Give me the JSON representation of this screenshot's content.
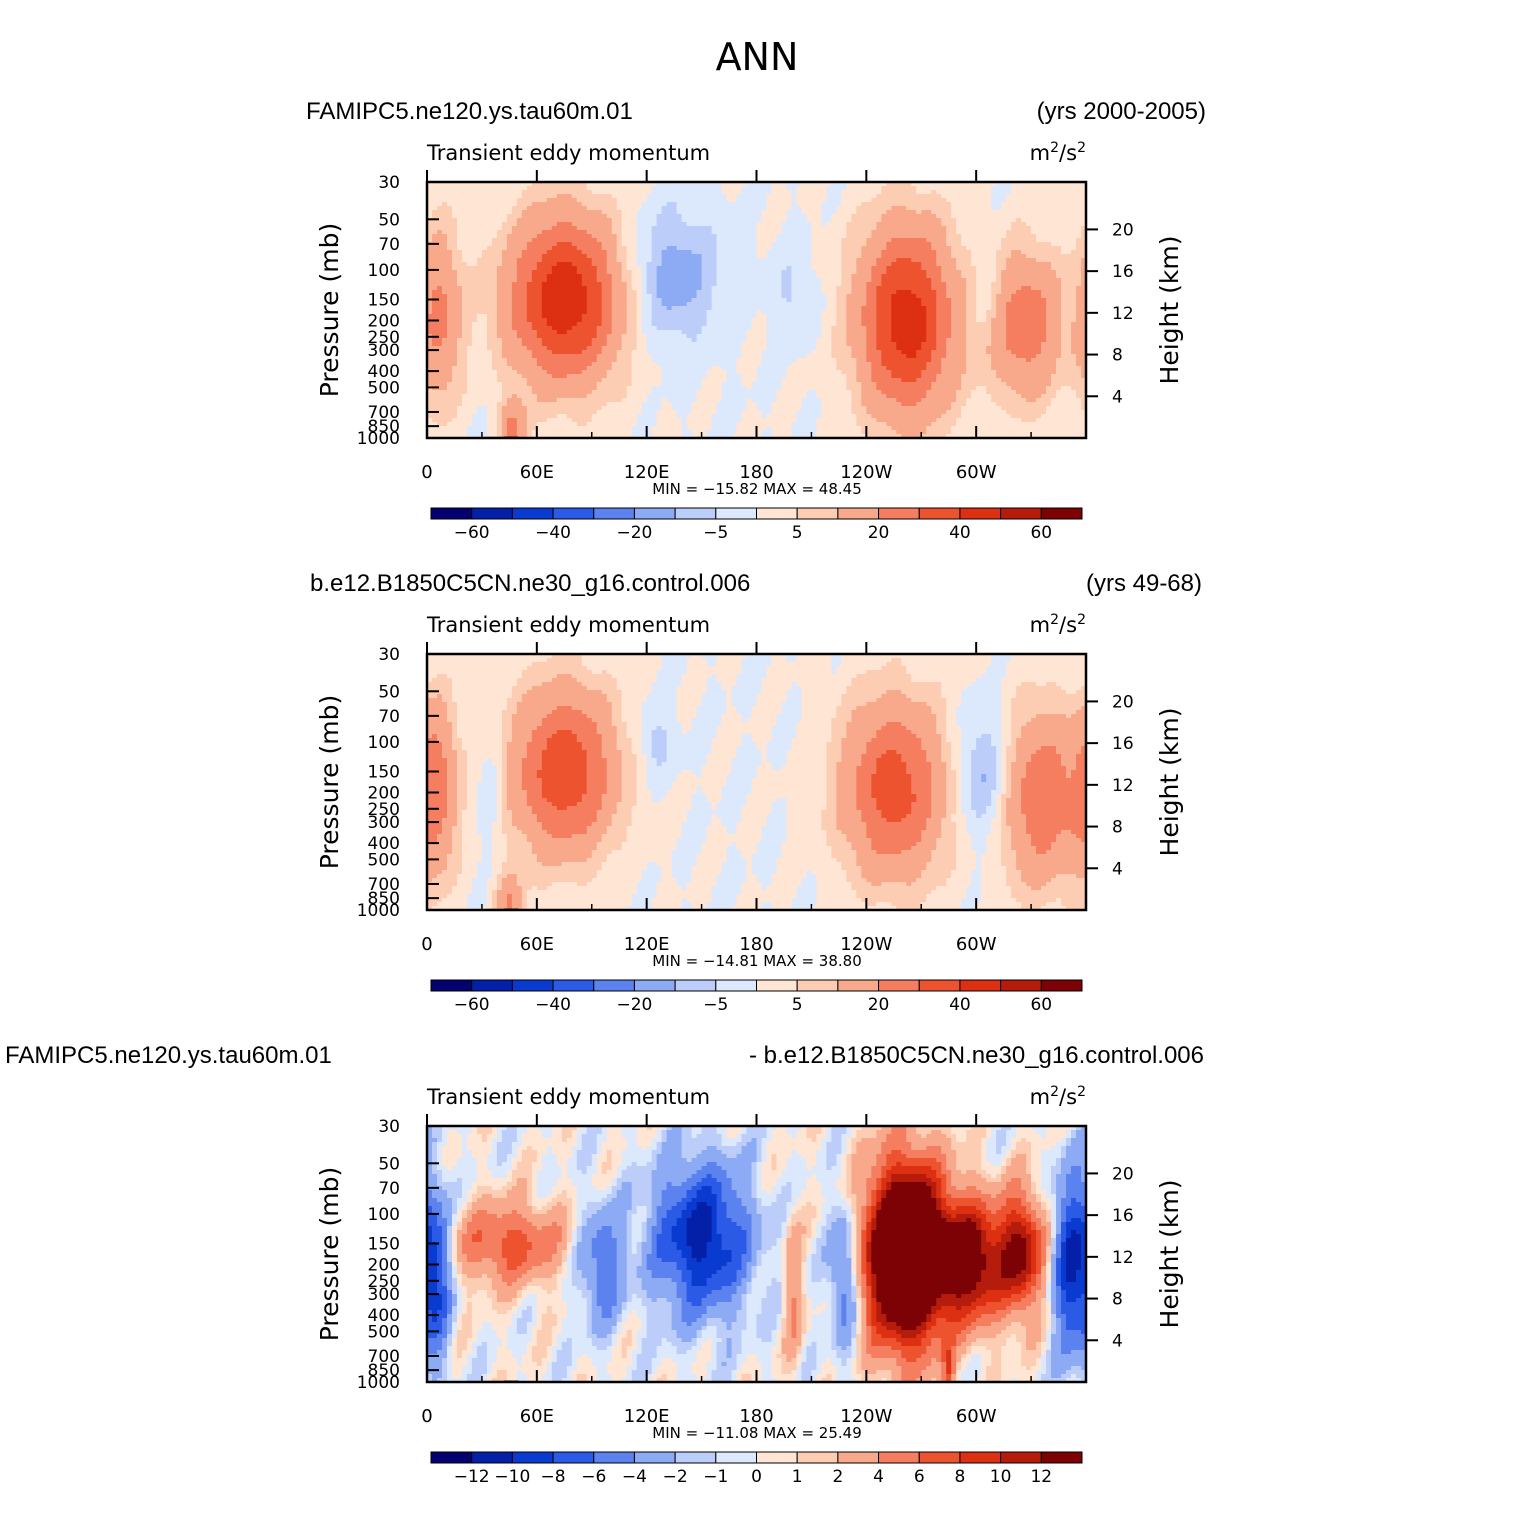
{
  "figure": {
    "title": "ANN"
  },
  "colors": {
    "neg": [
      "#03026e",
      "#0420a8",
      "#0a3bd0",
      "#2b5ae6",
      "#5c82ef",
      "#8daaf4",
      "#bbcdf8",
      "#dce8fb"
    ],
    "pos": [
      "#ffe6d4",
      "#fdcdb3",
      "#f9a98b",
      "#f47e5f",
      "#ee5330",
      "#dd2f12",
      "#b51c0c",
      "#7c0206"
    ],
    "land": "#000000"
  },
  "chart_data": [
    {
      "type": "heatmap",
      "left_title": "FAMIPC5.ne120.ys.tau60m.01",
      "right_title": "(yrs 2000-2005)",
      "subtitle": "Transient  eddy  momentum",
      "units": "m",
      "units_sup1": "2",
      "units_mid": "/s",
      "units_sup2": "2",
      "ylabel": "Pressure  (mb)",
      "ylabel_right": "Height  (km)",
      "x_ticks": [
        "0",
        "60E",
        "120E",
        "180",
        "120W",
        "60W"
      ],
      "y_ticks": [
        "30",
        "50",
        "70",
        "100",
        "150",
        "200",
        "250",
        "300",
        "400",
        "500",
        "700",
        "850",
        "1000"
      ],
      "y_ticks_right": [
        "20",
        "16",
        "12",
        "8",
        "4"
      ],
      "stats": "MIN  =  −15.82    MAX  =    48.45",
      "min": -15.82,
      "max": 48.45,
      "colorbar_labels": [
        "−60",
        "−40",
        "−20",
        "−5",
        "5",
        "20",
        "40",
        "60"
      ],
      "features": [
        {
          "lon": 75,
          "p": 150,
          "peak": 48,
          "wlon": 30,
          "wp": 0.28
        },
        {
          "lon": 262,
          "p": 200,
          "peak": 46,
          "wlon": 26,
          "wp": 0.32
        },
        {
          "lon": 327,
          "p": 210,
          "peak": 27,
          "wlon": 20,
          "wp": 0.25
        },
        {
          "lon": 7,
          "p": 190,
          "peak": 22,
          "wlon": 12,
          "wp": 0.3
        },
        {
          "lon": 47,
          "p": 900,
          "peak": 22,
          "wlon": 7,
          "wp": 0.1
        },
        {
          "lon": 135,
          "p": 110,
          "peak": -14,
          "wlon": 24,
          "wp": 0.22
        },
        {
          "lon": 200,
          "p": 140,
          "peak": -6,
          "wlon": 12,
          "wp": 0.15
        },
        {
          "lon": 305,
          "p": 140,
          "peak": -6,
          "wlon": 10,
          "wp": 0.15
        }
      ]
    },
    {
      "type": "heatmap",
      "left_title": "b.e12.B1850C5CN.ne30_g16.control.006",
      "right_title": "(yrs 49-68)",
      "subtitle": "Transient  eddy  momentum",
      "units": "m",
      "units_sup1": "2",
      "units_mid": "/s",
      "units_sup2": "2",
      "ylabel": "Pressure  (mb)",
      "ylabel_right": "Height  (km)",
      "x_ticks": [
        "0",
        "60E",
        "120E",
        "180",
        "120W",
        "60W"
      ],
      "y_ticks": [
        "30",
        "50",
        "70",
        "100",
        "150",
        "200",
        "250",
        "300",
        "400",
        "500",
        "700",
        "850",
        "1000"
      ],
      "y_ticks_right": [
        "20",
        "16",
        "12",
        "8",
        "4"
      ],
      "stats": "MIN  =  −14.81    MAX  =    38.80",
      "min": -14.81,
      "max": 38.8,
      "colorbar_labels": [
        "−60",
        "−40",
        "−20",
        "−5",
        "5",
        "20",
        "40",
        "60"
      ],
      "features": [
        {
          "lon": 75,
          "p": 150,
          "peak": 38,
          "wlon": 28,
          "wp": 0.28
        },
        {
          "lon": 255,
          "p": 190,
          "peak": 35,
          "wlon": 28,
          "wp": 0.3
        },
        {
          "lon": 335,
          "p": 215,
          "peak": 28,
          "wlon": 22,
          "wp": 0.3
        },
        {
          "lon": 5,
          "p": 190,
          "peak": 24,
          "wlon": 12,
          "wp": 0.3
        },
        {
          "lon": 45,
          "p": 900,
          "peak": 20,
          "wlon": 7,
          "wp": 0.1
        },
        {
          "lon": 125,
          "p": 100,
          "peak": -8,
          "wlon": 10,
          "wp": 0.12
        },
        {
          "lon": 305,
          "p": 160,
          "peak": -14,
          "wlon": 16,
          "wp": 0.22
        },
        {
          "lon": 35,
          "p": 200,
          "peak": -6,
          "wlon": 8,
          "wp": 0.2
        }
      ]
    },
    {
      "type": "heatmap",
      "left_title": "FAMIPC5.ne120.ys.tau60m.01",
      "right_title": "- b.e12.B1850C5CN.ne30_g16.control.006",
      "subtitle": "Transient  eddy  momentum",
      "units": "m",
      "units_sup1": "2",
      "units_mid": "/s",
      "units_sup2": "2",
      "ylabel": "Pressure  (mb)",
      "ylabel_right": "Height  (km)",
      "x_ticks": [
        "0",
        "60E",
        "120E",
        "180",
        "120W",
        "60W"
      ],
      "y_ticks": [
        "30",
        "50",
        "70",
        "100",
        "150",
        "200",
        "250",
        "300",
        "400",
        "500",
        "700",
        "850",
        "1000"
      ],
      "y_ticks_right": [
        "20",
        "16",
        "12",
        "8",
        "4"
      ],
      "stats": "MIN  =  −11.08    MAX  =    25.49",
      "min": -11.08,
      "max": 25.49,
      "colorbar_labels": [
        "−12",
        "−10",
        "−8",
        "−6",
        "−4",
        "−2",
        "−1",
        "0",
        "1",
        "2",
        "4",
        "6",
        "8",
        "10",
        "12"
      ],
      "features": [
        {
          "lon": 262,
          "p": 175,
          "peak": 25,
          "wlon": 22,
          "wp": 0.3
        },
        {
          "lon": 298,
          "p": 190,
          "peak": 14,
          "wlon": 18,
          "wp": 0.2
        },
        {
          "lon": 325,
          "p": 170,
          "peak": 12,
          "wlon": 12,
          "wp": 0.2
        },
        {
          "lon": 45,
          "p": 150,
          "peak": 7,
          "wlon": 30,
          "wp": 0.14
        },
        {
          "lon": 285,
          "p": 880,
          "peak": 6,
          "wlon": 3,
          "wp": 0.1
        },
        {
          "lon": 200,
          "p": 280,
          "peak": 4,
          "wlon": 5,
          "wp": 0.25
        },
        {
          "lon": 150,
          "p": 140,
          "peak": -11,
          "wlon": 26,
          "wp": 0.25
        },
        {
          "lon": 95,
          "p": 200,
          "peak": -6,
          "wlon": 12,
          "wp": 0.2
        },
        {
          "lon": 5,
          "p": 210,
          "peak": -8,
          "wlon": 8,
          "wp": 0.3
        },
        {
          "lon": 352,
          "p": 200,
          "peak": -10,
          "wlon": 10,
          "wp": 0.3
        },
        {
          "lon": 228,
          "p": 230,
          "peak": -7,
          "wlon": 8,
          "wp": 0.25
        }
      ]
    }
  ]
}
